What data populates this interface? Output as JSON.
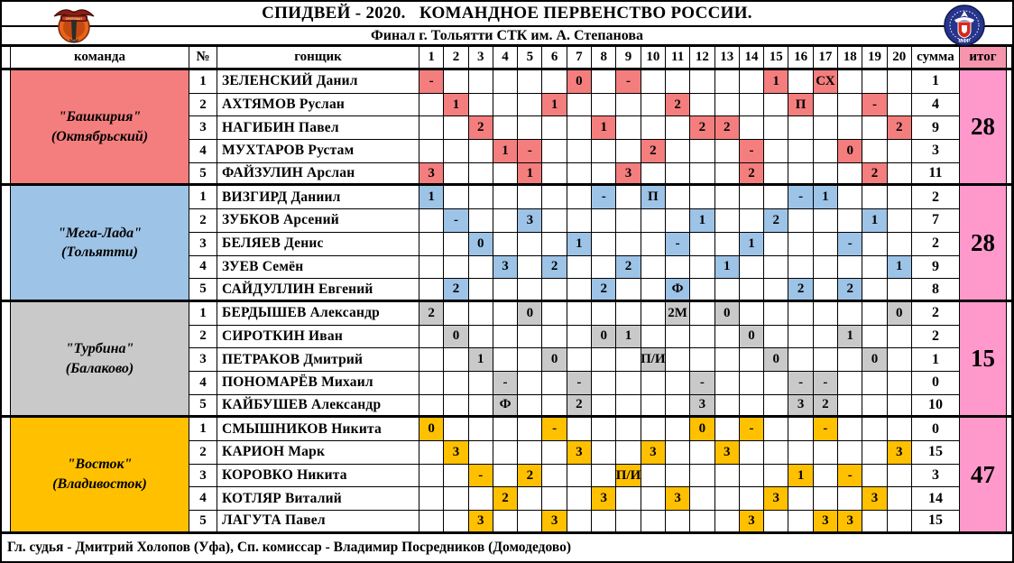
{
  "header": {
    "title": "СПИДВЕЙ - 2020.   КОМАНДНОЕ ПЕРВЕНСТВО РОССИИ.",
    "subtitle": "Финал г. Тольятти СТК им. А. Степанова",
    "left_logo": "speedway-club-emblem",
    "right_logo": "mfr-federation-emblem"
  },
  "columns": {
    "team": "команда",
    "num": "№",
    "rider": "гонщик",
    "heats": [
      "1",
      "2",
      "3",
      "4",
      "5",
      "6",
      "7",
      "8",
      "9",
      "10",
      "11",
      "12",
      "13",
      "14",
      "15",
      "16",
      "17",
      "18",
      "19",
      "20"
    ],
    "sum": "сумма",
    "total": "итог"
  },
  "colors": {
    "total_column": "#FF99CC",
    "total_header": "#F795AE",
    "border": "#000000"
  },
  "teams": [
    {
      "name": "\"Башкирия\"",
      "city": "(Октябрьский)",
      "color": "#F47E7E",
      "total": "28",
      "riders": [
        {
          "num": "1",
          "name": "ЗЕЛЕНСКИЙ Данил",
          "sum": "1",
          "scores": {
            "1": "-",
            "7": "0",
            "9": "-",
            "15": "1",
            "17": "СХ"
          }
        },
        {
          "num": "2",
          "name": "АХТЯМОВ Руслан",
          "sum": "4",
          "scores": {
            "2": "1",
            "6": "1",
            "11": "2",
            "16": "П",
            "19": "-"
          }
        },
        {
          "num": "3",
          "name": "НАГИБИН Павел",
          "sum": "9",
          "scores": {
            "3": "2",
            "8": "1",
            "12": "2",
            "13": "2",
            "20": "2"
          }
        },
        {
          "num": "4",
          "name": "МУХТАРОВ Рустам",
          "sum": "3",
          "scores": {
            "4": "1",
            "5": "-",
            "10": "2",
            "14": "-",
            "18": "0"
          }
        },
        {
          "num": "5",
          "name": "ФАЙЗУЛИН Арслан",
          "sum": "11",
          "scores": {
            "1": "3",
            "5": "1",
            "9": "3",
            "14": "2",
            "19": "2"
          }
        }
      ]
    },
    {
      "name": "\"Мега-Лада\"",
      "city": "(Тольятти)",
      "color": "#9DC3E6",
      "total": "28",
      "riders": [
        {
          "num": "1",
          "name": "ВИЗГИРД Даниил",
          "sum": "2",
          "scores": {
            "1": "1",
            "8": "-",
            "10": "П",
            "16": "-",
            "17": "1"
          }
        },
        {
          "num": "2",
          "name": "ЗУБКОВ Арсений",
          "sum": "7",
          "scores": {
            "2": "-",
            "5": "3",
            "12": "1",
            "15": "2",
            "19": "1"
          }
        },
        {
          "num": "3",
          "name": "БЕЛЯЕВ Денис",
          "sum": "2",
          "scores": {
            "3": "0",
            "7": "1",
            "11": "-",
            "14": "1",
            "18": "-"
          }
        },
        {
          "num": "4",
          "name": "ЗУЕВ Семён",
          "sum": "9",
          "scores": {
            "4": "3",
            "6": "2",
            "9": "2",
            "13": "1",
            "20": "1"
          }
        },
        {
          "num": "5",
          "name": "САЙДУЛЛИН Евгений",
          "sum": "8",
          "scores": {
            "2": "2",
            "8": "2",
            "11": "Ф",
            "16": "2",
            "18": "2"
          }
        }
      ]
    },
    {
      "name": "\"Турбина\"",
      "city": "(Балаково)",
      "color": "#C9C9C9",
      "total": "15",
      "riders": [
        {
          "num": "1",
          "name": "БЕРДЫШЕВ Александр",
          "sum": "2",
          "scores": {
            "1": "2",
            "5": "0",
            "11": "2М",
            "13": "0",
            "20": "0"
          }
        },
        {
          "num": "2",
          "name": "СИРОТКИН Иван",
          "sum": "2",
          "scores": {
            "2": "0",
            "8": "0",
            "9": "1",
            "14": "0",
            "18": "1"
          }
        },
        {
          "num": "3",
          "name": "ПЕТРАКОВ Дмитрий",
          "sum": "1",
          "scores": {
            "3": "1",
            "6": "0",
            "10": "П/И",
            "15": "0",
            "19": "0"
          }
        },
        {
          "num": "4",
          "name": "ПОНОМАРЁВ Михаил",
          "sum": "0",
          "scores": {
            "4": "-",
            "7": "-",
            "12": "-",
            "16": "-",
            "17": "-"
          }
        },
        {
          "num": "5",
          "name": "КАЙБУШЕВ Александр",
          "sum": "10",
          "scores": {
            "4": "Ф",
            "7": "2",
            "12": "3",
            "16": "3",
            "17": "2"
          }
        }
      ]
    },
    {
      "name": "\"Восток\"",
      "city": "(Владивосток)",
      "color": "#FFC000",
      "total": "47",
      "riders": [
        {
          "num": "1",
          "name": "СМЫШНИКОВ Никита",
          "sum": "0",
          "scores": {
            "1": "0",
            "6": "-",
            "12": "0",
            "14": "-",
            "17": "-"
          }
        },
        {
          "num": "2",
          "name": "КАРИОН Марк",
          "sum": "15",
          "scores": {
            "2": "3",
            "7": "3",
            "10": "3",
            "13": "3",
            "20": "3"
          }
        },
        {
          "num": "3",
          "name": "КОРОВКО Никита",
          "sum": "3",
          "scores": {
            "3": "-",
            "5": "2",
            "9": "П/И",
            "16": "1",
            "18": "-"
          }
        },
        {
          "num": "4",
          "name": "КОТЛЯР Виталий",
          "sum": "14",
          "scores": {
            "4": "2",
            "8": "3",
            "11": "3",
            "15": "3",
            "19": "3"
          }
        },
        {
          "num": "5",
          "name": "ЛАГУТА Павел",
          "sum": "15",
          "scores": {
            "3": "3",
            "6": "3",
            "14": "3",
            "17": "3",
            "18": "3"
          }
        }
      ]
    }
  ],
  "footer": {
    "text": "Гл. судья - Дмитрий Холопов (Уфа), Сп. комиссар - Владимир Посредников (Домодедово)"
  }
}
